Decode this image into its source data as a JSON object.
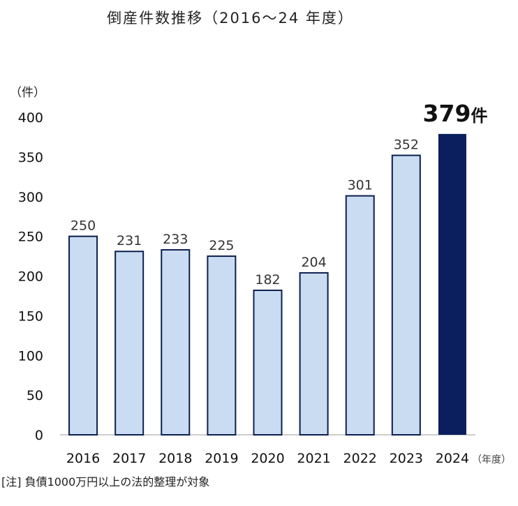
{
  "title": "倒産件数推移（2016～24 年度）",
  "y_unit": "（件）",
  "x_unit": "（年度）",
  "note": "[注] 負債1000万円以上の法的整理が対象",
  "highlight": {
    "index": 8,
    "value": "379",
    "suffix": "件"
  },
  "colors": {
    "bar": "#c9dcf1",
    "bar_edge": "#0c1f4f",
    "highlight": "#0b1f5e",
    "axis": "#bbbbbb"
  },
  "chart_data": {
    "type": "bar",
    "categories": [
      "2016",
      "2017",
      "2018",
      "2019",
      "2020",
      "2021",
      "2022",
      "2023",
      "2024"
    ],
    "values": [
      250,
      231,
      233,
      225,
      182,
      204,
      301,
      352,
      379
    ],
    "data_labels": [
      "250",
      "231",
      "233",
      "225",
      "182",
      "204",
      "301",
      "352",
      ""
    ],
    "yticks": [
      0,
      50,
      100,
      150,
      200,
      250,
      300,
      350,
      400
    ],
    "ylim": [
      0,
      400
    ],
    "xlabel": "",
    "ylabel": "",
    "grid": false,
    "legend": "none"
  }
}
